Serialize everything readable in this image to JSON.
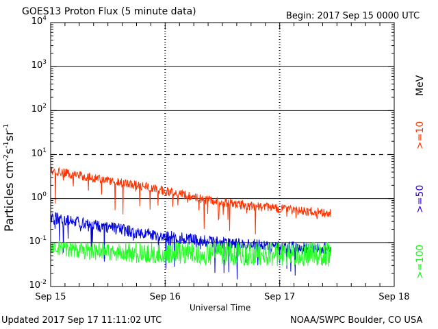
{
  "header": {
    "title": "GOES13 Proton Flux (5 minute data)",
    "begin": "Begin: 2017 Sep 15 0000 UTC"
  },
  "footer": {
    "updated": "Updated 2017 Sep 17 11:11:02 UTC",
    "credit": "NOAA/SWPC Boulder, CO USA"
  },
  "chart_data": {
    "type": "line",
    "title": "GOES13 Proton Flux (5 minute data)",
    "xlabel": "Universal Time",
    "ylabel_base": "Particles cm",
    "ylabel_exps": [
      "-2",
      "-1",
      "-1"
    ],
    "ylabel_units": [
      "s",
      "sr"
    ],
    "yscale": "log",
    "ylim": [
      0.01,
      10000
    ],
    "xlim": [
      0,
      3
    ],
    "x_ticks": [
      {
        "x": 0,
        "label": "Sep 15"
      },
      {
        "x": 1,
        "label": "Sep 16"
      },
      {
        "x": 2,
        "label": "Sep 17"
      },
      {
        "x": 3,
        "label": "Sep 18"
      }
    ],
    "y_ticks": [
      {
        "value": 10000,
        "base": "10",
        "exp": "4"
      },
      {
        "value": 1000,
        "base": "10",
        "exp": "3"
      },
      {
        "value": 100,
        "base": "10",
        "exp": "2"
      },
      {
        "value": 10,
        "base": "10",
        "exp": "1"
      },
      {
        "value": 1,
        "base": "10",
        "exp": "0"
      },
      {
        "value": 0.1,
        "base": "10",
        "exp": "-1"
      },
      {
        "value": 0.01,
        "base": "10",
        "exp": "-2"
      }
    ],
    "solid_gridlines": [
      1000,
      100,
      1,
      0.1
    ],
    "dashed_gridlines": [
      10
    ],
    "unit_label": "MeV",
    "series": [
      {
        "name": ">=10",
        "color": "#ff3300",
        "points": [
          [
            0,
            4.2
          ],
          [
            0.1,
            3.9
          ],
          [
            0.2,
            3.5
          ],
          [
            0.3,
            3.2
          ],
          [
            0.4,
            2.8
          ],
          [
            0.5,
            2.5
          ],
          [
            0.6,
            2.3
          ],
          [
            0.7,
            2.1
          ],
          [
            0.8,
            1.9
          ],
          [
            0.9,
            1.7
          ],
          [
            1.0,
            1.5
          ],
          [
            1.1,
            1.3
          ],
          [
            1.2,
            1.15
          ],
          [
            1.3,
            1.0
          ],
          [
            1.4,
            0.9
          ],
          [
            1.5,
            0.82
          ],
          [
            1.6,
            0.75
          ],
          [
            1.7,
            0.7
          ],
          [
            1.8,
            0.66
          ],
          [
            1.9,
            0.62
          ],
          [
            2.0,
            0.58
          ],
          [
            2.1,
            0.55
          ],
          [
            2.2,
            0.52
          ],
          [
            2.3,
            0.5
          ],
          [
            2.4,
            0.47
          ],
          [
            2.45,
            0.45
          ]
        ]
      },
      {
        "name": ">=50",
        "color": "#0000dd",
        "points": [
          [
            0,
            0.38
          ],
          [
            0.1,
            0.34
          ],
          [
            0.2,
            0.3
          ],
          [
            0.3,
            0.27
          ],
          [
            0.4,
            0.24
          ],
          [
            0.5,
            0.22
          ],
          [
            0.6,
            0.2
          ],
          [
            0.7,
            0.18
          ],
          [
            0.8,
            0.16
          ],
          [
            0.9,
            0.15
          ],
          [
            1.0,
            0.14
          ],
          [
            1.1,
            0.13
          ],
          [
            1.2,
            0.12
          ],
          [
            1.3,
            0.11
          ],
          [
            1.4,
            0.105
          ],
          [
            1.5,
            0.1
          ],
          [
            1.6,
            0.095
          ],
          [
            1.7,
            0.09
          ],
          [
            1.8,
            0.087
          ],
          [
            1.9,
            0.084
          ],
          [
            2.0,
            0.082
          ],
          [
            2.1,
            0.079
          ],
          [
            2.2,
            0.077
          ],
          [
            2.3,
            0.075
          ],
          [
            2.4,
            0.073
          ],
          [
            2.45,
            0.072
          ]
        ]
      },
      {
        "name": ">=100",
        "color": "#22ff22",
        "points": [
          [
            0,
            0.08
          ],
          [
            0.3,
            0.06
          ],
          [
            0.6,
            0.052
          ],
          [
            0.9,
            0.048
          ],
          [
            1.2,
            0.046
          ],
          [
            1.5,
            0.044
          ],
          [
            1.8,
            0.043
          ],
          [
            2.1,
            0.042
          ],
          [
            2.45,
            0.041
          ]
        ]
      }
    ]
  }
}
